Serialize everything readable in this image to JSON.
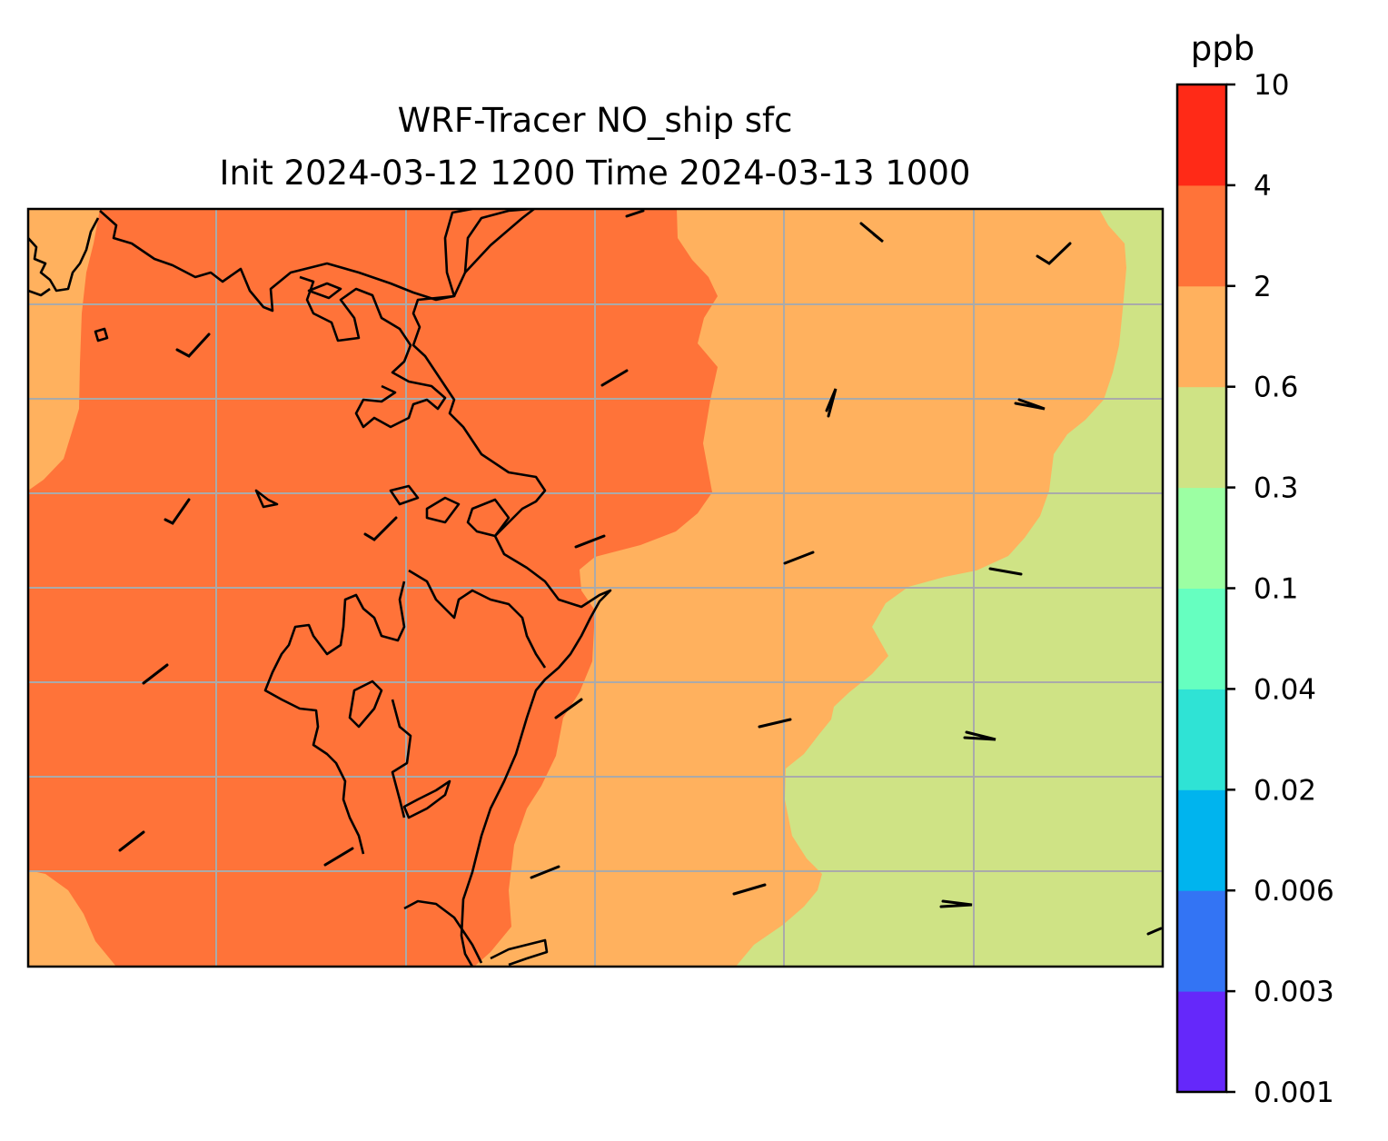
{
  "title": {
    "line1": "WRF-Tracer NO_ship sfc",
    "line2": "Init 2024-03-12 1200 Time 2024-03-13 1000"
  },
  "colorbar": {
    "unit": "ppb",
    "levels": [
      "0.001",
      "0.003",
      "0.006",
      "0.02",
      "0.04",
      "0.1",
      "0.3",
      "0.6",
      "2",
      "4",
      "10"
    ],
    "colors": [
      "#6528fa",
      "#3374f4",
      "#00b4ee",
      "#2fe3d5",
      "#66ffc0",
      "#9cffa3",
      "#cfe385",
      "#ffb15e",
      "#ff7339",
      "#ff2a17"
    ]
  },
  "map": {
    "fill_colors": {
      "2-4": "#ff7339",
      "0.6-2": "#ffb15e",
      "0.3-0.6": "#cfe385"
    },
    "coastline_color": "#000000",
    "gridline_color": "#aaaaaa"
  }
}
